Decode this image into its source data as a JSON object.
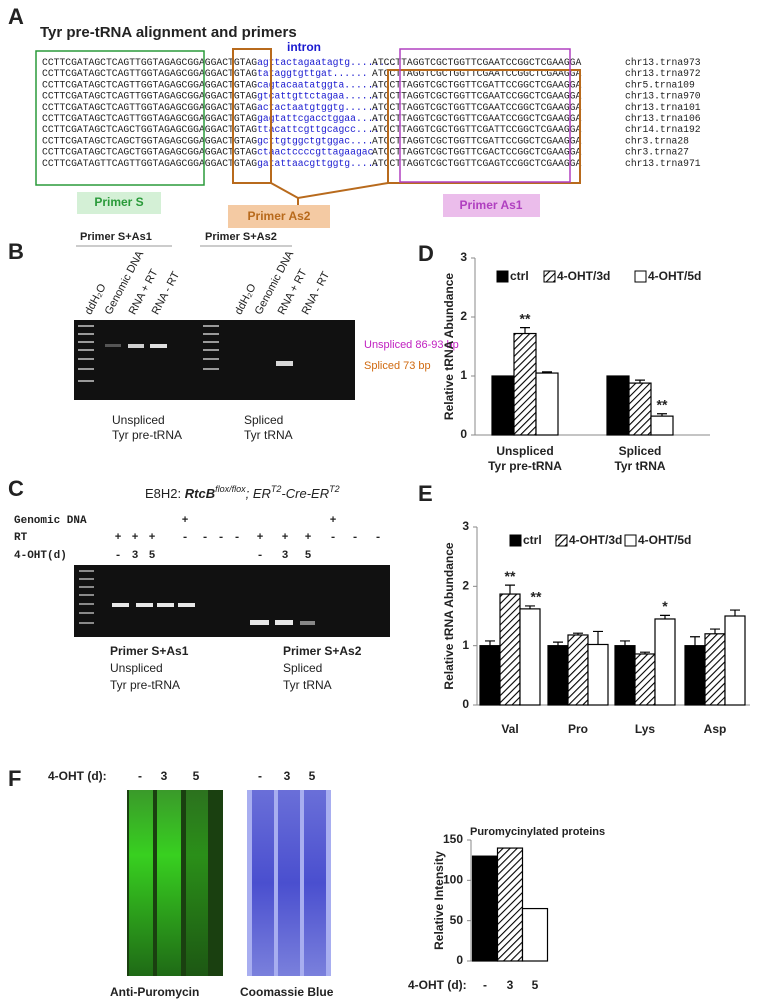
{
  "panel_a": {
    "letter": "A",
    "title": "Tyr pre-tRNA alignment and primers",
    "intron_label": "intron",
    "sequences": [
      {
        "exon1": "CCTTCGATAGCTCAGTTGGTAGAGCGGAGGACTGTAG",
        "intron": "agttactagaatagtg........",
        "exon2": "ATCCTTAGGTCGCTGGTTCGAATCCGGCTCGAAGGA",
        "name": "chr13.trna973"
      },
      {
        "exon1": "CCTTCGATAGCTCAGTTGGTAGAGCGGAGGACTGTAG",
        "intron": "tataggtgttgat......",
        "exon2": "ATCCTTAGGTCGCTGGTTCGAATCCGGCTCGAAGGA",
        "name": "chr13.trna972"
      },
      {
        "exon1": "CCTTCGATAGCTCAGTTGGTAGAGCGGAGGACTGTAG",
        "intron": "cagtacaatatggta......",
        "exon2": "ATCCTTAGGTCGCTGGTTCGATTCCGGCTCGAAGGA",
        "name": "chr5.trna109"
      },
      {
        "exon1": "CCTTCGATAGCTCAGTTGGTAGAGCGGAGGACTGTAG",
        "intron": "gtcattgttctagaa......",
        "exon2": "ATCCTTAGGTCGCTGGTTCGAATCCGGCTCGAAGGA",
        "name": "chr13.trna970"
      },
      {
        "exon1": "CCTTCGATAGCTCAGTTGGTAGAGCGGAGGACTGTAG",
        "intron": "actactaatgtggtg......",
        "exon2": "ATCCTTAGGTCGCTGGTTCGAATCCGGCTCGAAGGA",
        "name": "chr13.trna101"
      },
      {
        "exon1": "CCTTCGATAGCTCAGTTGGTAGAGCGGAGGACTGTAG",
        "intron": "gagtattcgacctggaa....",
        "exon2": "ATCCTTAGGTCGCTGGTTCGAATCCGGCTCGAAGGA",
        "name": "chr13.trna106"
      },
      {
        "exon1": "CCTTCGATAGCTCAGCTGGTAGAGCGGAGGACTGTAG",
        "intron": "ttacattcgttgcagcc....",
        "exon2": "ATCCTTAGGTCGCTGGTTCGATTCCGGCTCGAAGGA",
        "name": "chr14.trna192"
      },
      {
        "exon1": "CCTTCGATAGCTCAGCTGGTAGAGCGGAGGACTGTAG",
        "intron": "gcttgtggctgtggac....",
        "exon2": "ATCCTTAGGTCGCTGGTTCGATTCCGGCTCGAAGGA",
        "name": "chr3.trna28"
      },
      {
        "exon1": "CCTTCGATAGCTCAGCTGGTAGAGCGGAGGACTGTAG",
        "intron": "ctaactccccgttagaagac",
        "exon2": "ATCCTTAGGTCGCTGGTTCGACTCCGGCTCGAAGGA",
        "name": "chr3.trna27"
      },
      {
        "exon1": "CCTTCGATAGTTCAGTTGGTAGAGCGGAGGACTGTAG",
        "intron": "gatattaacgttggtg.....",
        "exon2": "ATCCTTAGGTCGCTGGTTCGAGTCCGGCTCGAAGGA",
        "name": "chr13.trna971"
      }
    ],
    "primer_labels": [
      "Primer S",
      "Primer As2",
      "Primer As1"
    ]
  },
  "panel_b": {
    "letter": "B",
    "primer_headers": [
      "Primer S+As1",
      "Primer S+As2"
    ],
    "lanes": [
      "ddH₂O",
      "Genomic DNA",
      "RNA + RT",
      "RNA - RT",
      "ddH₂O",
      "Genomic DNA",
      "RNA + RT",
      "RNA - RT"
    ],
    "band_labels": [
      "Unspliced 86-93 bp",
      "Spliced 73 bp"
    ],
    "captions": [
      [
        "Unspliced",
        "Tyr pre-tRNA"
      ],
      [
        "Spliced",
        "Tyr tRNA"
      ]
    ]
  },
  "panel_c": {
    "letter": "C",
    "title_parts": [
      "E8H2: ",
      "RtcB",
      "flox/flox",
      "; ER",
      "T2",
      "-Cre-ER",
      "T2"
    ],
    "row_labels": [
      "Genomic DNA",
      "RT",
      "4-OHT(d)"
    ],
    "rows": [
      [
        null,
        null,
        null,
        "+",
        null,
        null,
        null,
        null,
        null,
        null,
        "+",
        null,
        null
      ],
      [
        "+",
        "+",
        "+",
        "-",
        "-",
        "-",
        "-",
        "+",
        "+",
        "+",
        "-",
        "-",
        "-"
      ],
      [
        "-",
        "3",
        "5",
        null,
        null,
        null,
        null,
        "-",
        "3",
        "5",
        null,
        null,
        null
      ]
    ],
    "captions": [
      [
        "Primer S+As1",
        "Unspliced",
        "Tyr pre-tRNA"
      ],
      [
        "Primer S+As2",
        "Spliced",
        "Tyr tRNA"
      ]
    ]
  },
  "panel_f": {
    "letter": "F",
    "label": "4-OHT (d):",
    "lanes": [
      "-",
      "3",
      "5"
    ],
    "blot_labels": [
      "Anti-Puromycin",
      "Coomassie Blue"
    ]
  },
  "chart_data": [
    {
      "type": "bar",
      "label": "D",
      "ylabel": "Relative tRNA Abundance",
      "categories": [
        [
          "Unspliced",
          "Tyr pre-tRNA"
        ],
        [
          "Spliced",
          "Tyr tRNA"
        ]
      ],
      "series": [
        {
          "name": "ctrl",
          "color": "#000000",
          "hatched": false,
          "values": [
            1,
            1
          ]
        },
        {
          "name": "4-OHT/3d",
          "color": "#ffffff",
          "hatched": true,
          "values": [
            1.72,
            0.88
          ],
          "errors": [
            0.1,
            0.05
          ],
          "annotations": [
            "**",
            null
          ]
        },
        {
          "name": "4-OHT/5d",
          "color": "#ffffff",
          "hatched": false,
          "values": [
            1.05,
            0.32
          ],
          "errors": [
            0.02,
            0.04
          ],
          "annotations": [
            null,
            "**"
          ]
        }
      ],
      "ylim": [
        0,
        3
      ],
      "yticks": [
        0,
        1,
        2,
        3
      ]
    },
    {
      "type": "bar",
      "label": "E",
      "ylabel": "Relative tRNA Abundance",
      "categories": [
        "Val",
        "Pro",
        "Lys",
        "Asp"
      ],
      "series": [
        {
          "name": "ctrl",
          "color": "#000000",
          "hatched": false,
          "values": [
            1,
            1,
            1,
            1
          ],
          "errors": [
            0.08,
            0.06,
            0.08,
            0.15
          ]
        },
        {
          "name": "4-OHT/3d",
          "color": "#ffffff",
          "hatched": true,
          "values": [
            1.87,
            1.18,
            0.86,
            1.2
          ],
          "errors": [
            0.15,
            0.03,
            0.03,
            0.08
          ],
          "annotations": [
            "**",
            null,
            null,
            null
          ]
        },
        {
          "name": "4-OHT/5d",
          "color": "#ffffff",
          "hatched": false,
          "values": [
            1.62,
            1.02,
            1.45,
            1.5
          ],
          "errors": [
            0.05,
            0.22,
            0.06,
            0.1
          ],
          "annotations": [
            "**",
            null,
            "*",
            null
          ]
        }
      ],
      "ylim": [
        0,
        3
      ],
      "yticks": [
        0,
        1,
        2,
        3
      ]
    },
    {
      "type": "bar",
      "title": "Puromycinylated proteins",
      "ylabel": "Relative Intensity",
      "xlabel": "4-OHT (d):",
      "categories": [
        "-",
        "3",
        "5"
      ],
      "values": [
        130,
        140,
        65
      ],
      "colors": [
        "#000000",
        "#ffffff",
        "#ffffff"
      ],
      "hatched": [
        false,
        true,
        false
      ],
      "ylim": [
        0,
        150
      ],
      "yticks": [
        0,
        50,
        100,
        150
      ]
    }
  ]
}
